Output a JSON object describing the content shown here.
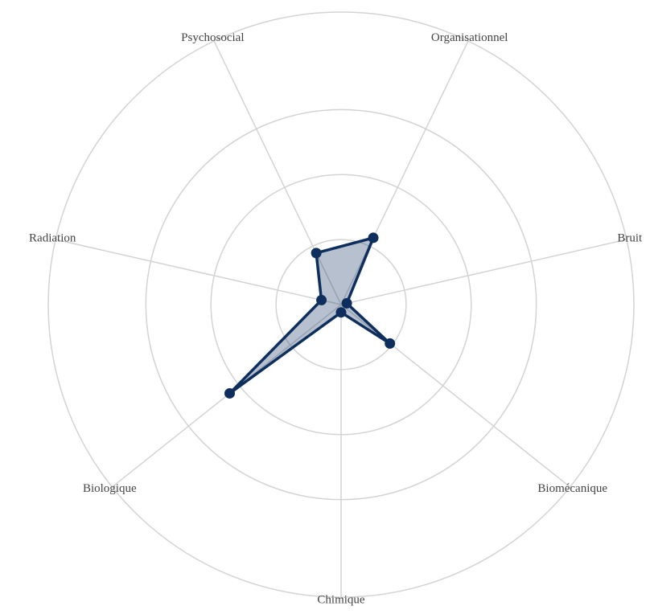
{
  "chart_data": {
    "type": "radar",
    "categories": [
      "Organisationnel",
      "Bruit",
      "Biomécanique",
      "Chimique",
      "Biologique",
      "Radiation",
      "Psychosocial"
    ],
    "values": [
      1.14,
      0.09,
      0.96,
      0.12,
      2.19,
      0.31,
      0.88
    ],
    "color": "#0e2f5e",
    "rlim": [
      0,
      4.5
    ],
    "rticks": [
      1,
      2,
      3,
      4.5
    ],
    "grid": true
  }
}
